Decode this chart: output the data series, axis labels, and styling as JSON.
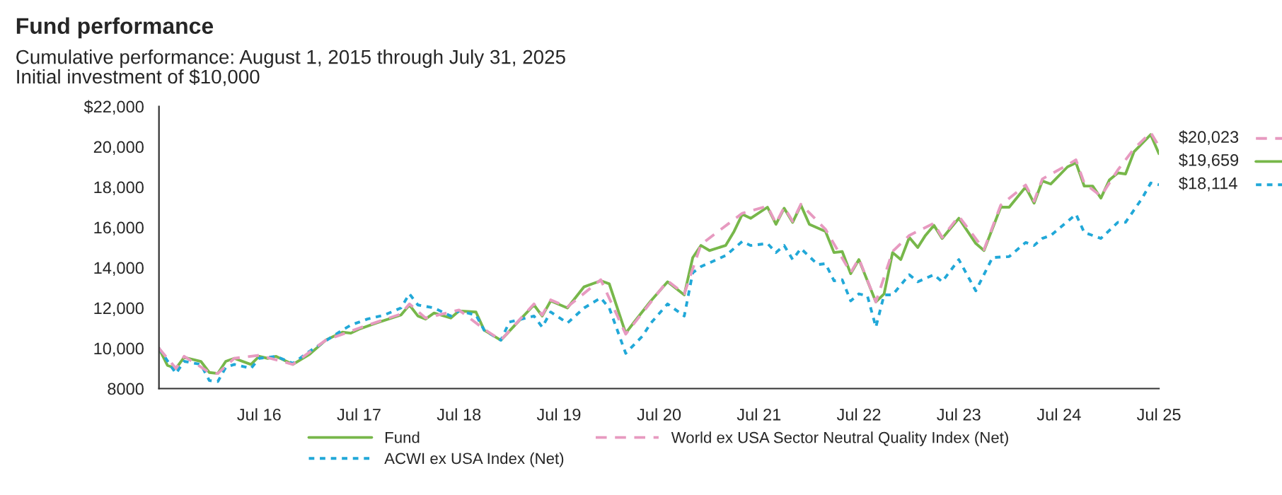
{
  "chart_data": {
    "type": "line",
    "title": "Fund performance",
    "subtitle": "Cumulative performance: August 1, 2015 through July 31, 2025\nInitial investment of $10,000",
    "xlim": [
      "2015-07",
      "2025-07"
    ],
    "xticks": [
      {
        "value": "2016-07",
        "label": "Jul 16"
      },
      {
        "value": "2017-07",
        "label": "Jul 17"
      },
      {
        "value": "2018-07",
        "label": "Jul 18"
      },
      {
        "value": "2019-07",
        "label": "Jul 19"
      },
      {
        "value": "2020-07",
        "label": "Jul 20"
      },
      {
        "value": "2021-07",
        "label": "Jul 21"
      },
      {
        "value": "2022-07",
        "label": "Jul 22"
      },
      {
        "value": "2023-07",
        "label": "Jul 23"
      },
      {
        "value": "2024-07",
        "label": "Jul 24"
      },
      {
        "value": "2025-07",
        "label": "Jul 25"
      }
    ],
    "ylim": [
      8000,
      22000
    ],
    "yticks": [
      8000,
      {
        "value": 10000,
        "label": "10,000"
      },
      {
        "value": 12000,
        "label": "12,000"
      },
      {
        "value": 14000,
        "label": "14,000"
      },
      {
        "value": 16000,
        "label": "16,000"
      },
      {
        "value": 18000,
        "label": "18,000"
      },
      {
        "value": 20000,
        "label": "20,000"
      },
      {
        "value": 22000,
        "label": "$22,000"
      }
    ],
    "grid": false,
    "legend": "bottom",
    "marker": "none",
    "series": [
      {
        "name": "Fund",
        "color": "#77b74a",
        "line_style": "solid",
        "x": [
          "2015-07",
          "2015-08",
          "2015-09",
          "2015-10",
          "2015-12",
          "2016-01",
          "2016-02",
          "2016-03",
          "2016-04",
          "2016-06",
          "2016-07",
          "2016-08",
          "2016-09",
          "2016-11",
          "2017-01",
          "2017-03",
          "2017-05",
          "2017-06",
          "2017-07",
          "2017-09",
          "2017-12",
          "2018-01",
          "2018-02",
          "2018-03",
          "2018-04",
          "2018-06",
          "2018-07",
          "2018-09",
          "2018-10",
          "2018-12",
          "2019-02",
          "2019-04",
          "2019-05",
          "2019-06",
          "2019-08",
          "2019-10",
          "2019-12",
          "2020-01",
          "2020-03",
          "2020-04",
          "2020-06",
          "2020-08",
          "2020-10",
          "2020-11",
          "2020-12",
          "2021-01",
          "2021-03",
          "2021-04",
          "2021-05",
          "2021-06",
          "2021-08",
          "2021-09",
          "2021-10",
          "2021-11",
          "2021-12",
          "2022-01",
          "2022-03",
          "2022-04",
          "2022-05",
          "2022-06",
          "2022-07",
          "2022-09",
          "2022-10",
          "2022-11",
          "2022-12",
          "2023-01",
          "2023-02",
          "2023-03",
          "2023-04",
          "2023-05",
          "2023-07",
          "2023-09",
          "2023-10",
          "2023-12",
          "2024-01",
          "2024-03",
          "2024-04",
          "2024-05",
          "2024-06",
          "2024-08",
          "2024-09",
          "2024-10",
          "2024-11",
          "2024-12",
          "2025-01",
          "2025-02",
          "2025-03",
          "2025-04",
          "2025-06",
          "2025-07"
        ],
        "values": [
          10000,
          9150,
          9000,
          9550,
          9350,
          8800,
          8750,
          9350,
          9500,
          9200,
          9600,
          9500,
          9600,
          9200,
          9700,
          10400,
          10800,
          10750,
          10950,
          11250,
          11650,
          12150,
          11600,
          11450,
          11750,
          11500,
          11850,
          11800,
          10900,
          10400,
          11300,
          12150,
          11600,
          12350,
          12000,
          13050,
          13350,
          13200,
          10750,
          11300,
          12350,
          13300,
          12650,
          14500,
          15100,
          14850,
          15100,
          15800,
          16650,
          16450,
          17000,
          16150,
          16950,
          16250,
          17100,
          16150,
          15800,
          14750,
          14800,
          13700,
          14400,
          12300,
          12700,
          14750,
          14400,
          15500,
          15000,
          15600,
          16100,
          15450,
          16450,
          15200,
          14850,
          17000,
          17000,
          18000,
          17200,
          18300,
          18150,
          19000,
          19200,
          18050,
          18050,
          17450,
          18350,
          18700,
          18650,
          19750,
          20600,
          19659
        ],
        "value_labels": [
          null,
          null,
          null,
          null,
          null,
          null,
          null,
          null,
          null,
          null,
          null,
          null,
          null,
          null,
          null,
          null,
          null,
          null,
          null,
          null,
          null,
          null,
          null,
          null,
          null,
          null,
          null,
          null,
          null,
          null,
          null,
          null,
          null,
          null,
          null,
          null,
          null,
          null,
          null,
          null,
          null,
          null,
          null,
          null,
          null,
          null,
          null,
          null,
          null,
          null,
          null,
          null,
          null,
          null,
          null,
          null,
          null,
          null,
          null,
          null,
          null,
          null,
          null,
          null,
          null,
          null,
          null,
          null,
          null,
          null,
          null,
          null,
          null,
          null,
          null,
          null,
          null,
          null,
          null,
          null,
          null,
          null,
          null,
          null,
          null,
          null,
          null,
          null,
          null,
          "$19,659"
        ]
      },
      {
        "name": "ACWI ex USA Index (Net)",
        "color": "#21a8d8",
        "line_style": "dotted",
        "x": [
          "2015-07",
          "2015-09",
          "2015-10",
          "2015-12",
          "2016-01",
          "2016-02",
          "2016-03",
          "2016-04",
          "2016-06",
          "2016-07",
          "2016-09",
          "2016-11",
          "2017-01",
          "2017-05",
          "2017-06",
          "2017-08",
          "2017-10",
          "2017-12",
          "2018-01",
          "2018-02",
          "2018-04",
          "2018-06",
          "2018-07",
          "2018-09",
          "2018-10",
          "2018-12",
          "2019-01",
          "2019-04",
          "2019-05",
          "2019-06",
          "2019-08",
          "2019-10",
          "2019-12",
          "2020-01",
          "2020-03",
          "2020-05",
          "2020-06",
          "2020-08",
          "2020-10",
          "2020-11",
          "2020-12",
          "2021-03",
          "2021-05",
          "2021-06",
          "2021-08",
          "2021-09",
          "2021-10",
          "2021-11",
          "2021-12",
          "2022-02",
          "2022-03",
          "2022-04",
          "2022-05",
          "2022-06",
          "2022-07",
          "2022-08",
          "2022-09",
          "2022-10",
          "2022-11",
          "2023-01",
          "2023-02",
          "2023-04",
          "2023-05",
          "2023-07",
          "2023-09",
          "2023-11",
          "2024-01",
          "2024-03",
          "2024-04",
          "2024-05",
          "2024-06",
          "2024-09",
          "2024-10",
          "2024-12",
          "2025-02",
          "2025-03",
          "2025-05",
          "2025-06",
          "2025-07"
        ],
        "values": [
          10000,
          8750,
          9350,
          9200,
          8400,
          8350,
          9050,
          9200,
          9000,
          9500,
          9600,
          9250,
          9850,
          10900,
          11150,
          11450,
          11650,
          12000,
          12700,
          12150,
          12000,
          11600,
          11850,
          11650,
          10900,
          10400,
          11300,
          11600,
          11050,
          11800,
          11250,
          12000,
          12500,
          12000,
          9750,
          10600,
          11250,
          12200,
          11600,
          13750,
          14050,
          14600,
          15300,
          15100,
          15200,
          14750,
          15100,
          14400,
          14950,
          14150,
          14200,
          13350,
          13400,
          12350,
          12700,
          12600,
          11050,
          12650,
          12650,
          13650,
          13300,
          13650,
          13300,
          14400,
          12850,
          14500,
          14550,
          15250,
          15100,
          15450,
          15600,
          16650,
          15750,
          15450,
          16250,
          16250,
          17450,
          18200,
          18114
        ],
        "value_labels": [
          null,
          null,
          null,
          null,
          null,
          null,
          null,
          null,
          null,
          null,
          null,
          null,
          null,
          null,
          null,
          null,
          null,
          null,
          null,
          null,
          null,
          null,
          null,
          null,
          null,
          null,
          null,
          null,
          null,
          null,
          null,
          null,
          null,
          null,
          null,
          null,
          null,
          null,
          null,
          null,
          null,
          null,
          null,
          null,
          null,
          null,
          null,
          null,
          null,
          null,
          null,
          null,
          null,
          null,
          null,
          null,
          null,
          null,
          null,
          null,
          null,
          null,
          null,
          null,
          null,
          null,
          null,
          null,
          null,
          null,
          null,
          null,
          null,
          null,
          null,
          null,
          null,
          null,
          "$18,114"
        ]
      },
      {
        "name": "World ex USA Sector Neutral Quality Index (Net)",
        "color": "#e79ac0",
        "line_style": "dashed",
        "x": [
          "2015-07",
          "2015-09",
          "2015-10",
          "2016-01",
          "2016-02",
          "2016-04",
          "2016-07",
          "2016-11",
          "2017-03",
          "2017-07",
          "2017-12",
          "2018-01",
          "2018-03",
          "2018-07",
          "2018-10",
          "2018-12",
          "2019-04",
          "2019-05",
          "2019-06",
          "2019-08",
          "2019-12",
          "2020-03",
          "2020-08",
          "2020-10",
          "2020-12",
          "2021-05",
          "2021-08",
          "2021-09",
          "2021-10",
          "2021-11",
          "2021-12",
          "2022-03",
          "2022-06",
          "2022-07",
          "2022-09",
          "2022-11",
          "2023-01",
          "2023-04",
          "2023-05",
          "2023-07",
          "2023-10",
          "2023-12",
          "2024-03",
          "2024-04",
          "2024-05",
          "2024-08",
          "2024-09",
          "2024-10",
          "2024-12",
          "2025-02",
          "2025-04",
          "2025-06",
          "2025-07"
        ],
        "values": [
          10000,
          9000,
          9600,
          8800,
          8750,
          9500,
          9650,
          9200,
          10400,
          11000,
          11700,
          12200,
          11500,
          11900,
          10950,
          10400,
          12200,
          11650,
          12400,
          12050,
          13400,
          10700,
          13350,
          12700,
          15150,
          16700,
          17050,
          16200,
          17000,
          16300,
          17150,
          15900,
          13750,
          14450,
          12300,
          14800,
          15600,
          16200,
          15500,
          16550,
          14900,
          17100,
          18100,
          17300,
          18400,
          19100,
          19350,
          18200,
          17550,
          18850,
          19900,
          20700,
          20023
        ],
        "value_labels": [
          null,
          null,
          null,
          null,
          null,
          null,
          null,
          null,
          null,
          null,
          null,
          null,
          null,
          null,
          null,
          null,
          null,
          null,
          null,
          null,
          null,
          null,
          null,
          null,
          null,
          null,
          null,
          null,
          null,
          null,
          null,
          null,
          null,
          null,
          null,
          null,
          null,
          null,
          null,
          null,
          null,
          null,
          null,
          null,
          null,
          null,
          null,
          null,
          null,
          null,
          null,
          null,
          "$20,023"
        ]
      }
    ]
  }
}
